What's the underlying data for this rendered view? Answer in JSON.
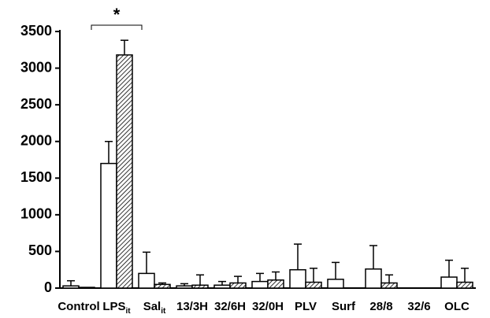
{
  "chart_data": {
    "type": "bar",
    "categories": [
      "Control",
      "LPS",
      "Sal",
      "13/3H",
      "32/6H",
      "32/0H",
      "PLV",
      "Surf",
      "28/8",
      "32/6",
      "OLC"
    ],
    "category_subscripts": [
      null,
      "it",
      "it",
      null,
      null,
      null,
      null,
      null,
      null,
      null,
      null
    ],
    "series": [
      {
        "color": "#ffffff",
        "values": [
          30,
          1700,
          200,
          30,
          40,
          90,
          250,
          120,
          260,
          0,
          150
        ],
        "errors": [
          70,
          300,
          290,
          30,
          50,
          110,
          350,
          230,
          320,
          null,
          230
        ]
      },
      {
        "color": "#ffffff",
        "pattern": "hatch",
        "values": [
          10,
          3180,
          50,
          40,
          70,
          110,
          80,
          0,
          70,
          0,
          80
        ],
        "errors": [
          null,
          200,
          20,
          140,
          90,
          110,
          190,
          null,
          110,
          null,
          190
        ]
      }
    ],
    "ylim": [
      0,
      3500
    ],
    "yticks": [
      0,
      500,
      1000,
      1500,
      2000,
      2500,
      3000,
      3500
    ],
    "grid": false,
    "annotations": [
      {
        "text": "*",
        "category": 1
      }
    ]
  }
}
